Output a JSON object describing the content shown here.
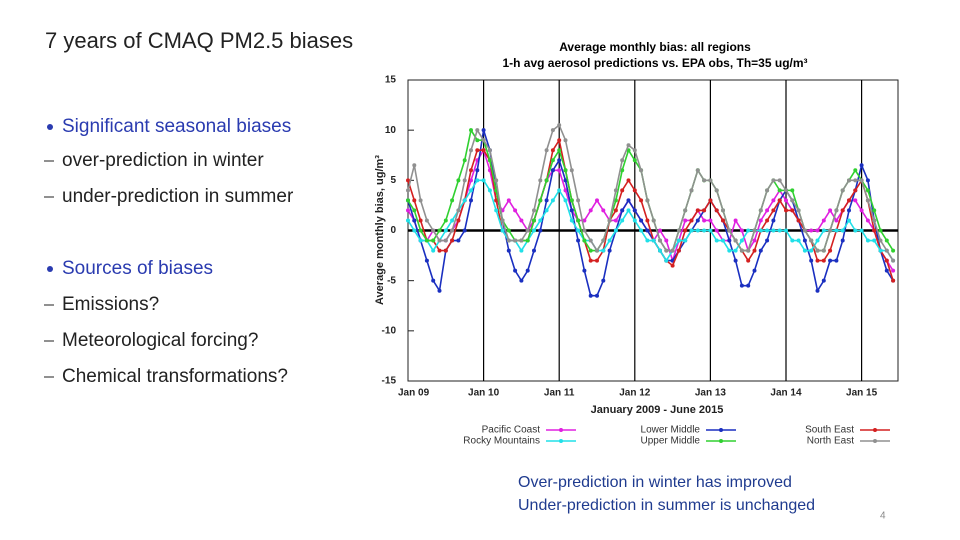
{
  "slide": {
    "title": "7 years of CMAQ PM2.5 biases",
    "bullet_groups": [
      {
        "heading": "Significant seasonal biases",
        "items": [
          "over-prediction in winter",
          "under-prediction in summer"
        ]
      },
      {
        "heading": "Sources of biases",
        "items": [
          "Emissions?",
          "Meteorological forcing?",
          "Chemical transformations?"
        ]
      }
    ],
    "note": [
      "Over-prediction in winter has improved",
      "Under-prediction in summer is unchanged"
    ],
    "page_number": 4
  },
  "chart_data": {
    "type": "line",
    "title": [
      "Average monthly bias: all regions",
      "1-h avg aerosol predictions vs. EPA obs, Th=35 ug/m³"
    ],
    "xlabel": "January 2009 - June 2015",
    "ylabel": "Average monthly bias, ug/m³",
    "ylim": [
      -15,
      15
    ],
    "yticks": [
      15,
      10,
      5,
      0,
      -5,
      -10,
      -15
    ],
    "categories": [
      "Jan 09",
      null,
      null,
      null,
      null,
      null,
      null,
      null,
      null,
      null,
      null,
      null,
      "Jan 10",
      null,
      null,
      null,
      null,
      null,
      null,
      null,
      null,
      null,
      null,
      null,
      "Jan 11",
      null,
      null,
      null,
      null,
      null,
      null,
      null,
      null,
      null,
      null,
      null,
      "Jan 12",
      null,
      null,
      null,
      null,
      null,
      null,
      null,
      null,
      null,
      null,
      null,
      "Jan 13",
      null,
      null,
      null,
      null,
      null,
      null,
      null,
      null,
      null,
      null,
      null,
      "Jan 14",
      null,
      null,
      null,
      null,
      null,
      null,
      null,
      null,
      null,
      null,
      null,
      "Jan 15",
      null,
      null,
      null,
      null,
      null
    ],
    "series": [
      {
        "name": "Pacific Coast",
        "color": "#e020e0",
        "values": [
          2,
          1,
          -1,
          -1,
          0,
          -1,
          -1,
          0,
          1,
          3,
          5,
          7,
          8,
          6,
          3,
          2,
          3,
          2,
          1,
          0,
          1,
          3,
          5,
          6,
          6,
          4,
          2,
          1,
          1,
          2,
          3,
          2,
          1,
          1,
          2,
          3,
          2,
          1,
          0,
          -1,
          0,
          -1,
          -3,
          -1,
          1,
          1,
          2,
          1,
          1,
          0,
          -1,
          -1,
          1,
          0,
          -2,
          -1,
          1,
          2,
          3,
          4,
          3,
          2,
          1,
          0,
          0,
          0,
          1,
          2,
          1,
          2,
          3,
          3,
          2,
          1,
          0,
          -2,
          -3,
          -4
        ]
      },
      {
        "name": "Lower Middle",
        "color": "#1a2fc0",
        "values": [
          3,
          1,
          -1,
          -3,
          -5,
          -6,
          -2,
          -1,
          -1,
          0,
          3,
          6,
          10,
          8,
          4,
          1,
          -2,
          -4,
          -5,
          -4,
          -2,
          0,
          3,
          6,
          7,
          5,
          2,
          -1,
          -4,
          -6.5,
          -6.5,
          -5,
          -2,
          0,
          2,
          3,
          2,
          1,
          0,
          -1,
          -2,
          -3,
          -3,
          -2,
          -1,
          0,
          1,
          2,
          3,
          2,
          1,
          -1,
          -3,
          -5.5,
          -5.5,
          -4,
          -2,
          -1,
          1,
          3,
          4,
          3,
          1,
          -1,
          -3,
          -6,
          -5,
          -3,
          -3,
          -1,
          2,
          4,
          6.5,
          5,
          1,
          -2,
          -4,
          -5
        ]
      },
      {
        "name": "South East",
        "color": "#d42020",
        "values": [
          5,
          3,
          1,
          -1,
          -1,
          -2,
          -2,
          -1,
          1,
          3,
          6,
          8,
          8,
          7,
          3,
          0,
          -1,
          -1,
          -1,
          -1,
          1,
          3,
          5,
          8,
          9,
          6,
          3,
          1,
          -1,
          -3,
          -3,
          -2,
          1,
          2,
          4,
          5,
          4,
          3,
          1,
          -1,
          -2,
          -3,
          -3.5,
          -2,
          0,
          1,
          2,
          2,
          3,
          2,
          1,
          0,
          -1,
          -2,
          -3,
          -2,
          0,
          1,
          2,
          3,
          2,
          2,
          1,
          0,
          -1,
          -3,
          -3,
          -2,
          0,
          2,
          3,
          4,
          5,
          3,
          0,
          -2,
          -3,
          -5
        ]
      },
      {
        "name": "Rocky Mountains",
        "color": "#20e0e8",
        "values": [
          1,
          0,
          -1,
          -1,
          -2,
          -1,
          0,
          1,
          2,
          3,
          4,
          5,
          5,
          4,
          2,
          0,
          -1,
          -1,
          -2,
          -1,
          0,
          1,
          2,
          3,
          4,
          3,
          1,
          0,
          -1,
          -1,
          -2,
          -2,
          -1,
          0,
          1,
          2,
          1,
          0,
          -1,
          -1,
          -2,
          -3,
          -2,
          -1,
          -1,
          0,
          0,
          0,
          0,
          -1,
          -1,
          -2,
          -2,
          -1,
          0,
          0,
          0,
          0,
          0,
          0,
          0,
          -1,
          -1,
          -2,
          -2,
          -1,
          0,
          0,
          0,
          0,
          1,
          0,
          0,
          -1,
          -1,
          -2,
          -2,
          -3
        ]
      },
      {
        "name": "Upper Middle",
        "color": "#30d030",
        "values": [
          3,
          2,
          0,
          -1,
          -1,
          0,
          1,
          3,
          5,
          7,
          10,
          9,
          9,
          7,
          4,
          1,
          0,
          -1,
          -1,
          -1,
          1,
          3,
          5,
          7,
          8,
          6,
          3,
          1,
          -1,
          -2,
          -2,
          -1,
          1,
          3,
          6,
          8,
          7,
          6,
          3,
          1,
          -1,
          -2,
          -2,
          0,
          2,
          4,
          6,
          5,
          5,
          4,
          2,
          0,
          -1,
          -2,
          -2,
          0,
          2,
          4,
          5,
          4,
          4,
          4,
          2,
          0,
          -1,
          -2,
          -2,
          0,
          2,
          4,
          5,
          6,
          5,
          4,
          2,
          0,
          -1,
          -2
        ]
      },
      {
        "name": "North East",
        "color": "#909090",
        "values": [
          4,
          6.5,
          3,
          1,
          0,
          -1,
          -1,
          0,
          2,
          5,
          8,
          10,
          9,
          8,
          5,
          1,
          -1,
          -1,
          -1,
          0,
          2,
          5,
          8,
          10,
          10.5,
          9,
          6,
          3,
          0,
          -1,
          -2,
          -1,
          1,
          4,
          7,
          8.5,
          8,
          6,
          3,
          1,
          -1,
          -2,
          -2,
          0,
          2,
          4,
          6,
          5,
          5,
          4,
          2,
          0,
          -1,
          -2,
          -2,
          0,
          2,
          4,
          5,
          5,
          4,
          3,
          2,
          0,
          -1,
          -2,
          -2,
          0,
          2,
          4,
          5,
          5,
          5,
          3,
          1,
          -1,
          -2,
          -3
        ]
      }
    ],
    "grid": true
  }
}
